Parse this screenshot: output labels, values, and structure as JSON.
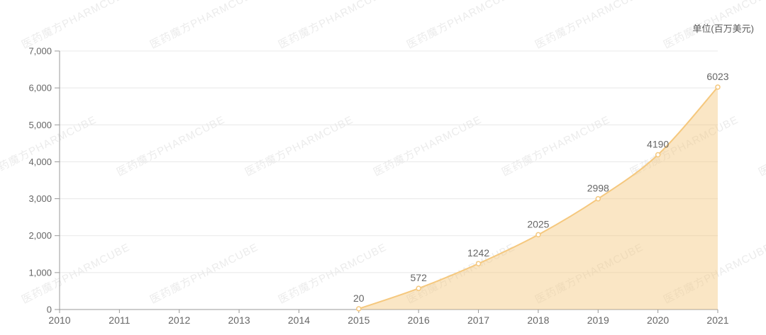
{
  "unit_label": "单位(百万美元)",
  "watermark": {
    "text": "医药魔方PHARMCUBE"
  },
  "chart_data": {
    "type": "area",
    "title": "",
    "x": [
      "2010",
      "2011",
      "2012",
      "2013",
      "2014",
      "2015",
      "2016",
      "2017",
      "2018",
      "2019",
      "2020",
      "2021"
    ],
    "series": [
      {
        "name": "",
        "values": [
          null,
          null,
          null,
          null,
          null,
          20,
          572,
          1242,
          2025,
          2998,
          4190,
          6023
        ]
      }
    ],
    "show_data_labels": true,
    "data_label_values": [
      "20",
      "572",
      "1242",
      "2025",
      "2998",
      "4190",
      "6023"
    ],
    "xlabel": "",
    "ylabel": "",
    "ylim": [
      0,
      7000
    ],
    "yticks": [
      0,
      1000,
      2000,
      3000,
      4000,
      5000,
      6000,
      7000
    ],
    "ytick_labels": [
      "0",
      "1,000",
      "2,000",
      "3,000",
      "4,000",
      "5,000",
      "6,000",
      "7,000"
    ],
    "grid": true,
    "legend": "none",
    "smooth": true,
    "colors": {
      "line": "#F5C87E",
      "area": "#F5C87E",
      "area_opacity": 0.45,
      "marker_fill": "#FFFFFF",
      "axis": "#999999",
      "grid": "#E8E8E8",
      "tick_text": "#666666",
      "data_label": "#666666"
    }
  }
}
